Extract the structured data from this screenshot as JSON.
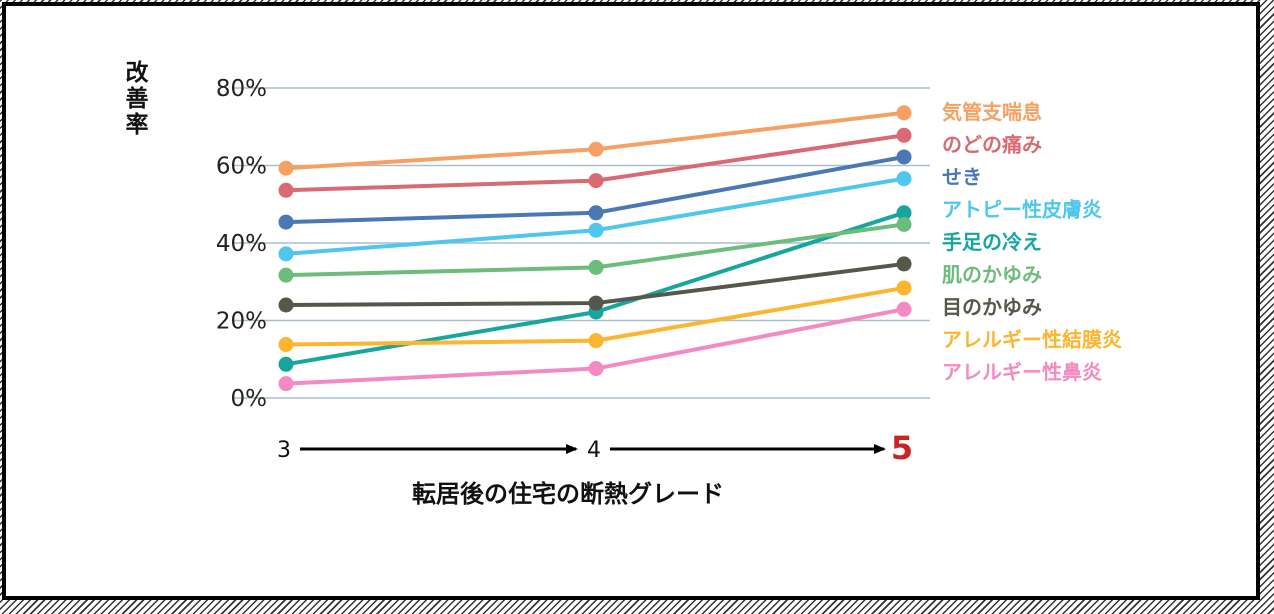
{
  "chart_data": {
    "type": "line",
    "ylabel": "改善率",
    "xlabel": "転居後の住宅の断熱グレード",
    "categories": [
      "3",
      "4",
      "5"
    ],
    "ylim": [
      0,
      80
    ],
    "yticks": [
      0,
      20,
      40,
      60,
      80
    ],
    "ytick_labels": [
      "0%",
      "20%",
      "40%",
      "60%",
      "80%"
    ],
    "grid": true,
    "legend_placement": "right",
    "highlight_category_color": "#cc2222",
    "series": [
      {
        "name": "気管支喘息",
        "color": "#f7a063",
        "values": [
          59.3,
          64.2,
          73.6
        ]
      },
      {
        "name": "のどの痛み",
        "color": "#d96a72",
        "values": [
          53.6,
          56.1,
          67.8
        ]
      },
      {
        "name": "せき",
        "color": "#4a78b4",
        "values": [
          45.4,
          47.8,
          62.2
        ]
      },
      {
        "name": "アトピー性皮膚炎",
        "color": "#4fc6ee",
        "values": [
          37.2,
          43.3,
          56.6
        ]
      },
      {
        "name": "手足の冷え",
        "color": "#16a69d",
        "values": [
          8.7,
          22.2,
          47.8
        ]
      },
      {
        "name": "肌のかゆみ",
        "color": "#6cbc7c",
        "values": [
          31.7,
          33.7,
          44.8
        ]
      },
      {
        "name": "目のかゆみ",
        "color": "#56564a",
        "values": [
          24.0,
          24.5,
          34.6
        ]
      },
      {
        "name": "アレルギー性結膜炎",
        "color": "#fbb52e",
        "values": [
          13.8,
          14.8,
          28.4
        ]
      },
      {
        "name": "アレルギー性鼻炎",
        "color": "#f38bc2",
        "values": [
          3.7,
          7.6,
          22.9
        ]
      }
    ]
  }
}
